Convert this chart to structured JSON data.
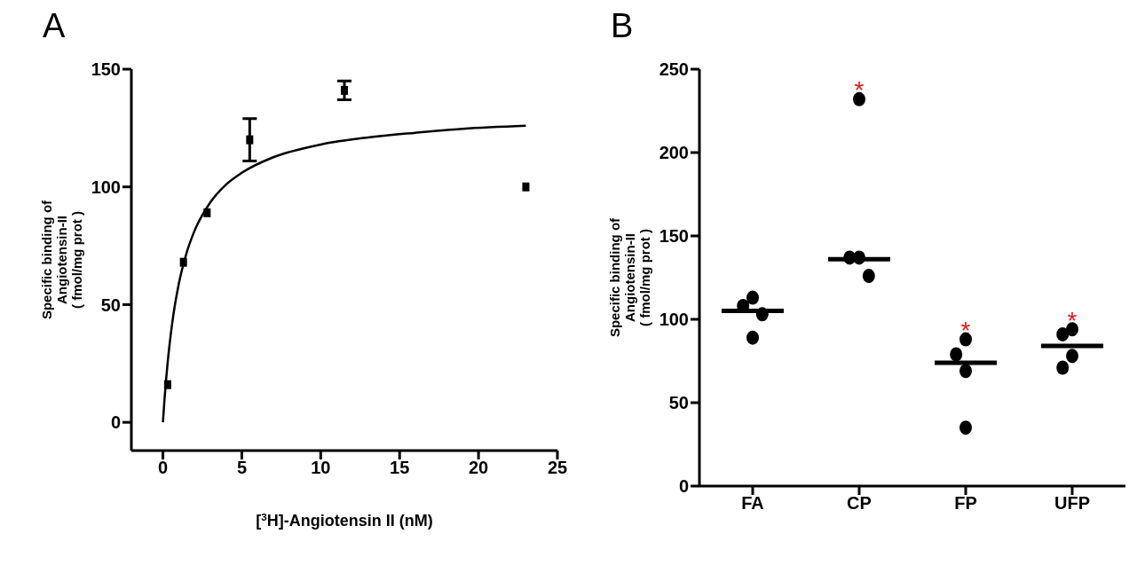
{
  "chart_data": [
    {
      "type": "scatter",
      "title": "A",
      "xlabel": "[$^{3}$H]-Angiotensin II (nM)",
      "ylabel": "Specific binding of\nAngiotensin-II\n( fmol/mg prot )",
      "xlim": [
        -2,
        25
      ],
      "xticks": [
        0,
        5,
        10,
        15,
        20,
        25
      ],
      "ylim": [
        -12,
        150
      ],
      "yticks": [
        0,
        50,
        100,
        150
      ],
      "series": [
        {
          "color": "#000000",
          "marker": "square",
          "x": [
            0.3,
            1.3,
            2.8,
            5.5,
            11.5,
            23
          ],
          "values": [
            16,
            68,
            89,
            120,
            141,
            100
          ],
          "errors": [
            null,
            null,
            null,
            9,
            4,
            null
          ]
        },
        {
          "type": "line",
          "color": "#000000",
          "marker": "none",
          "x": [
            0,
            0.1,
            0.3,
            0.6,
            1,
            1.5,
            2,
            3,
            4,
            5,
            7,
            10,
            13,
            16,
            19,
            23
          ],
          "values": [
            0,
            9.7,
            25.4,
            42.7,
            58.6,
            72,
            81.3,
            93.4,
            101,
            106,
            112.6,
            118,
            121,
            123,
            124.7,
            126
          ]
        }
      ]
    },
    {
      "type": "scatter",
      "title": "B",
      "ylabel": "Specific binding of\nAngiotensin-II\n( fmol/mg prot )",
      "categories": [
        "FA",
        "CP",
        "FP",
        "UFP"
      ],
      "ylim": [
        0,
        250
      ],
      "yticks": [
        0,
        50,
        100,
        150,
        200,
        250
      ],
      "series": [
        {
          "color": "#000000",
          "marker": "circle",
          "x": [
            "FA",
            "FA",
            "FA",
            "FA",
            "CP",
            "CP",
            "CP",
            "CP",
            "FP",
            "FP",
            "FP",
            "FP",
            "UFP",
            "UFP",
            "UFP",
            "UFP"
          ],
          "values": [
            113,
            108,
            103,
            89,
            232,
            137,
            137,
            126,
            88,
            79,
            69,
            35,
            94,
            91,
            78,
            71
          ]
        },
        {
          "type": "box",
          "color": "#000000",
          "x": [
            "FA",
            "CP",
            "FP",
            "UFP"
          ],
          "boxes": [
            {
              "low": 105,
              "q1": 105,
              "median": 105,
              "q3": 105,
              "high": 105
            },
            {
              "low": 136,
              "q1": 136,
              "median": 136,
              "q3": 136,
              "high": 136
            },
            {
              "low": 74,
              "q1": 74,
              "median": 74,
              "q3": 74,
              "high": 74
            },
            {
              "low": 84,
              "q1": 84,
              "median": 84,
              "q3": 84,
              "high": 84
            }
          ]
        }
      ],
      "annotations": [
        {
          "text": "*",
          "x": "CP"
        },
        {
          "text": "*",
          "x": "FP"
        },
        {
          "text": "*",
          "x": "UFP"
        }
      ]
    }
  ]
}
